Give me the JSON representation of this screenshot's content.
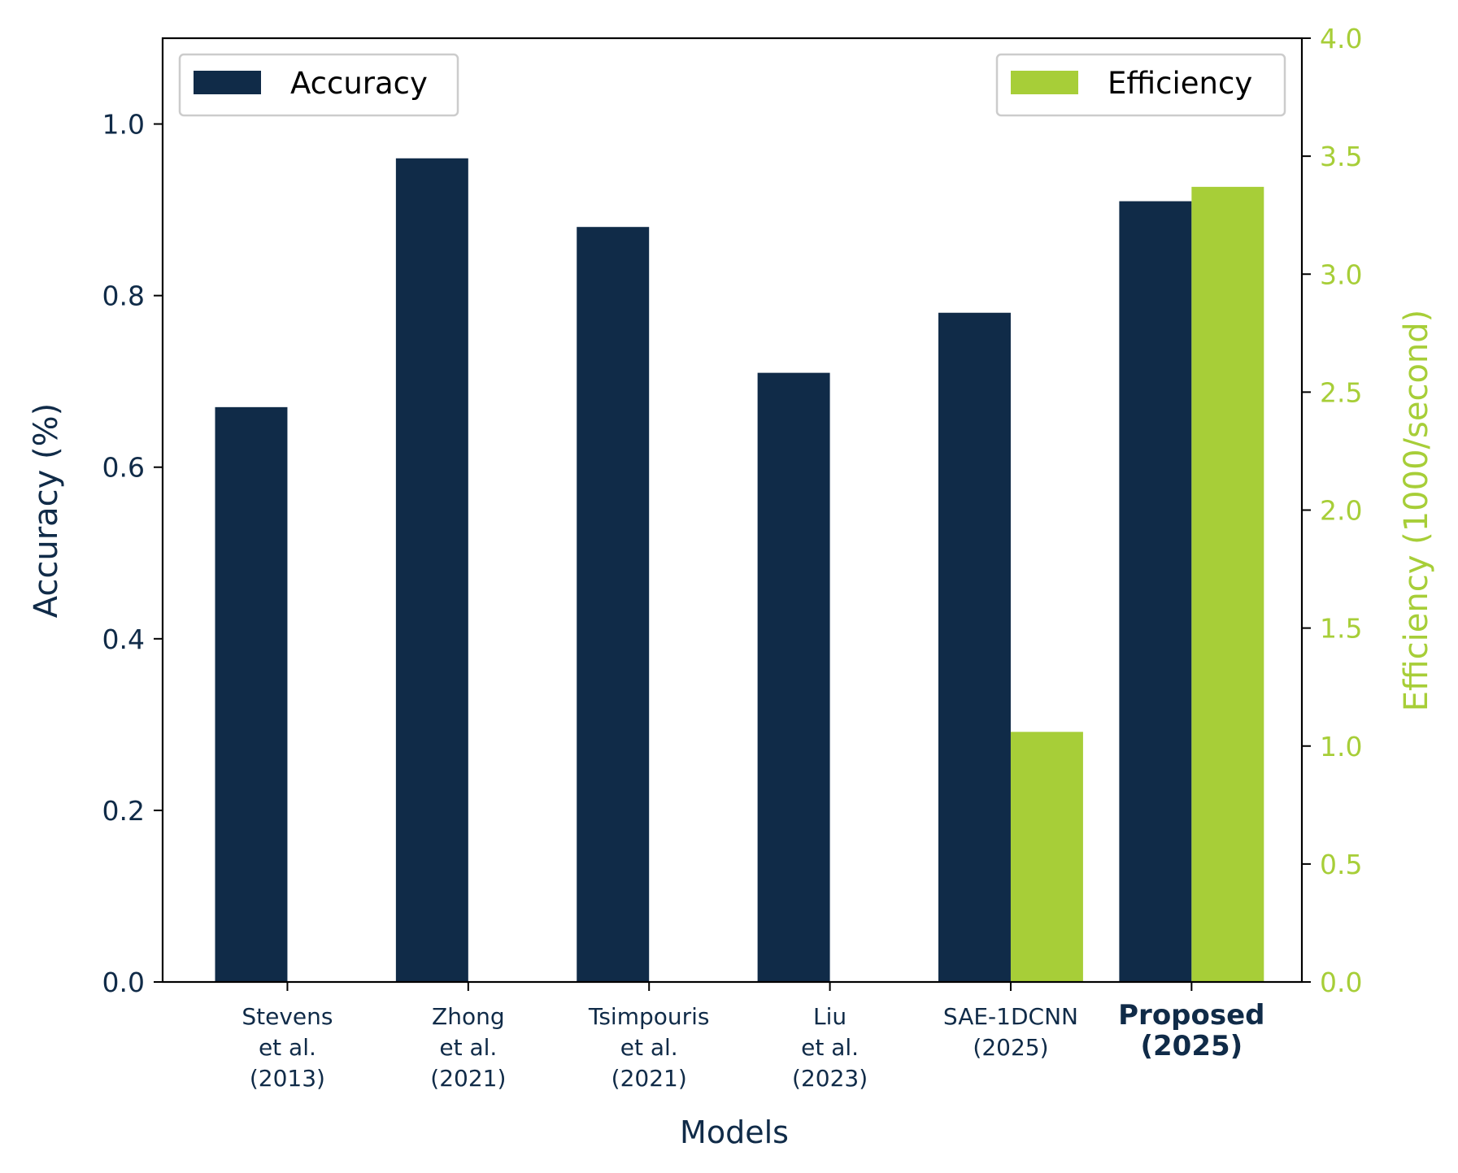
{
  "colors": {
    "accuracy": "#102b48",
    "efficiency": "#a7ce38",
    "axis": "#000000",
    "legend_border": "#cccccc"
  },
  "chart_data": {
    "type": "bar",
    "xlabel": "Models",
    "categories": [
      {
        "lines": [
          "Stevens",
          "et al.",
          "(2013)"
        ],
        "bold": false
      },
      {
        "lines": [
          "Zhong",
          "et al.",
          "(2021)"
        ],
        "bold": false
      },
      {
        "lines": [
          "Tsimpouris",
          "et al.",
          "(2021)"
        ],
        "bold": false
      },
      {
        "lines": [
          "Liu",
          "et al.",
          "(2023)"
        ],
        "bold": false
      },
      {
        "lines": [
          "SAE-1DCNN",
          "(2025)"
        ],
        "bold": false
      },
      {
        "lines": [
          "Proposed",
          "(2025)"
        ],
        "bold": true
      }
    ],
    "series": [
      {
        "name": "Accuracy",
        "axis": "left",
        "values": [
          0.67,
          0.96,
          0.88,
          0.71,
          0.78,
          0.91
        ]
      },
      {
        "name": "Efficiency",
        "axis": "right",
        "values": [
          null,
          null,
          null,
          null,
          1.06,
          3.37
        ]
      }
    ],
    "left_axis": {
      "label": "Accuracy (%)",
      "ylim": [
        0,
        1.1
      ],
      "ticks": [
        "0.0",
        "0.2",
        "0.4",
        "0.6",
        "0.8",
        "1.0"
      ]
    },
    "right_axis": {
      "label": "Efficiency (1000/second)",
      "ylim": [
        0,
        4.0
      ],
      "ticks": [
        "0.0",
        "0.5",
        "1.0",
        "1.5",
        "2.0",
        "2.5",
        "3.0",
        "3.5",
        "4.0"
      ]
    },
    "legends": [
      {
        "series": "Accuracy",
        "placement": "upper-left"
      },
      {
        "series": "Efficiency",
        "placement": "upper-right"
      }
    ],
    "grid": false
  }
}
